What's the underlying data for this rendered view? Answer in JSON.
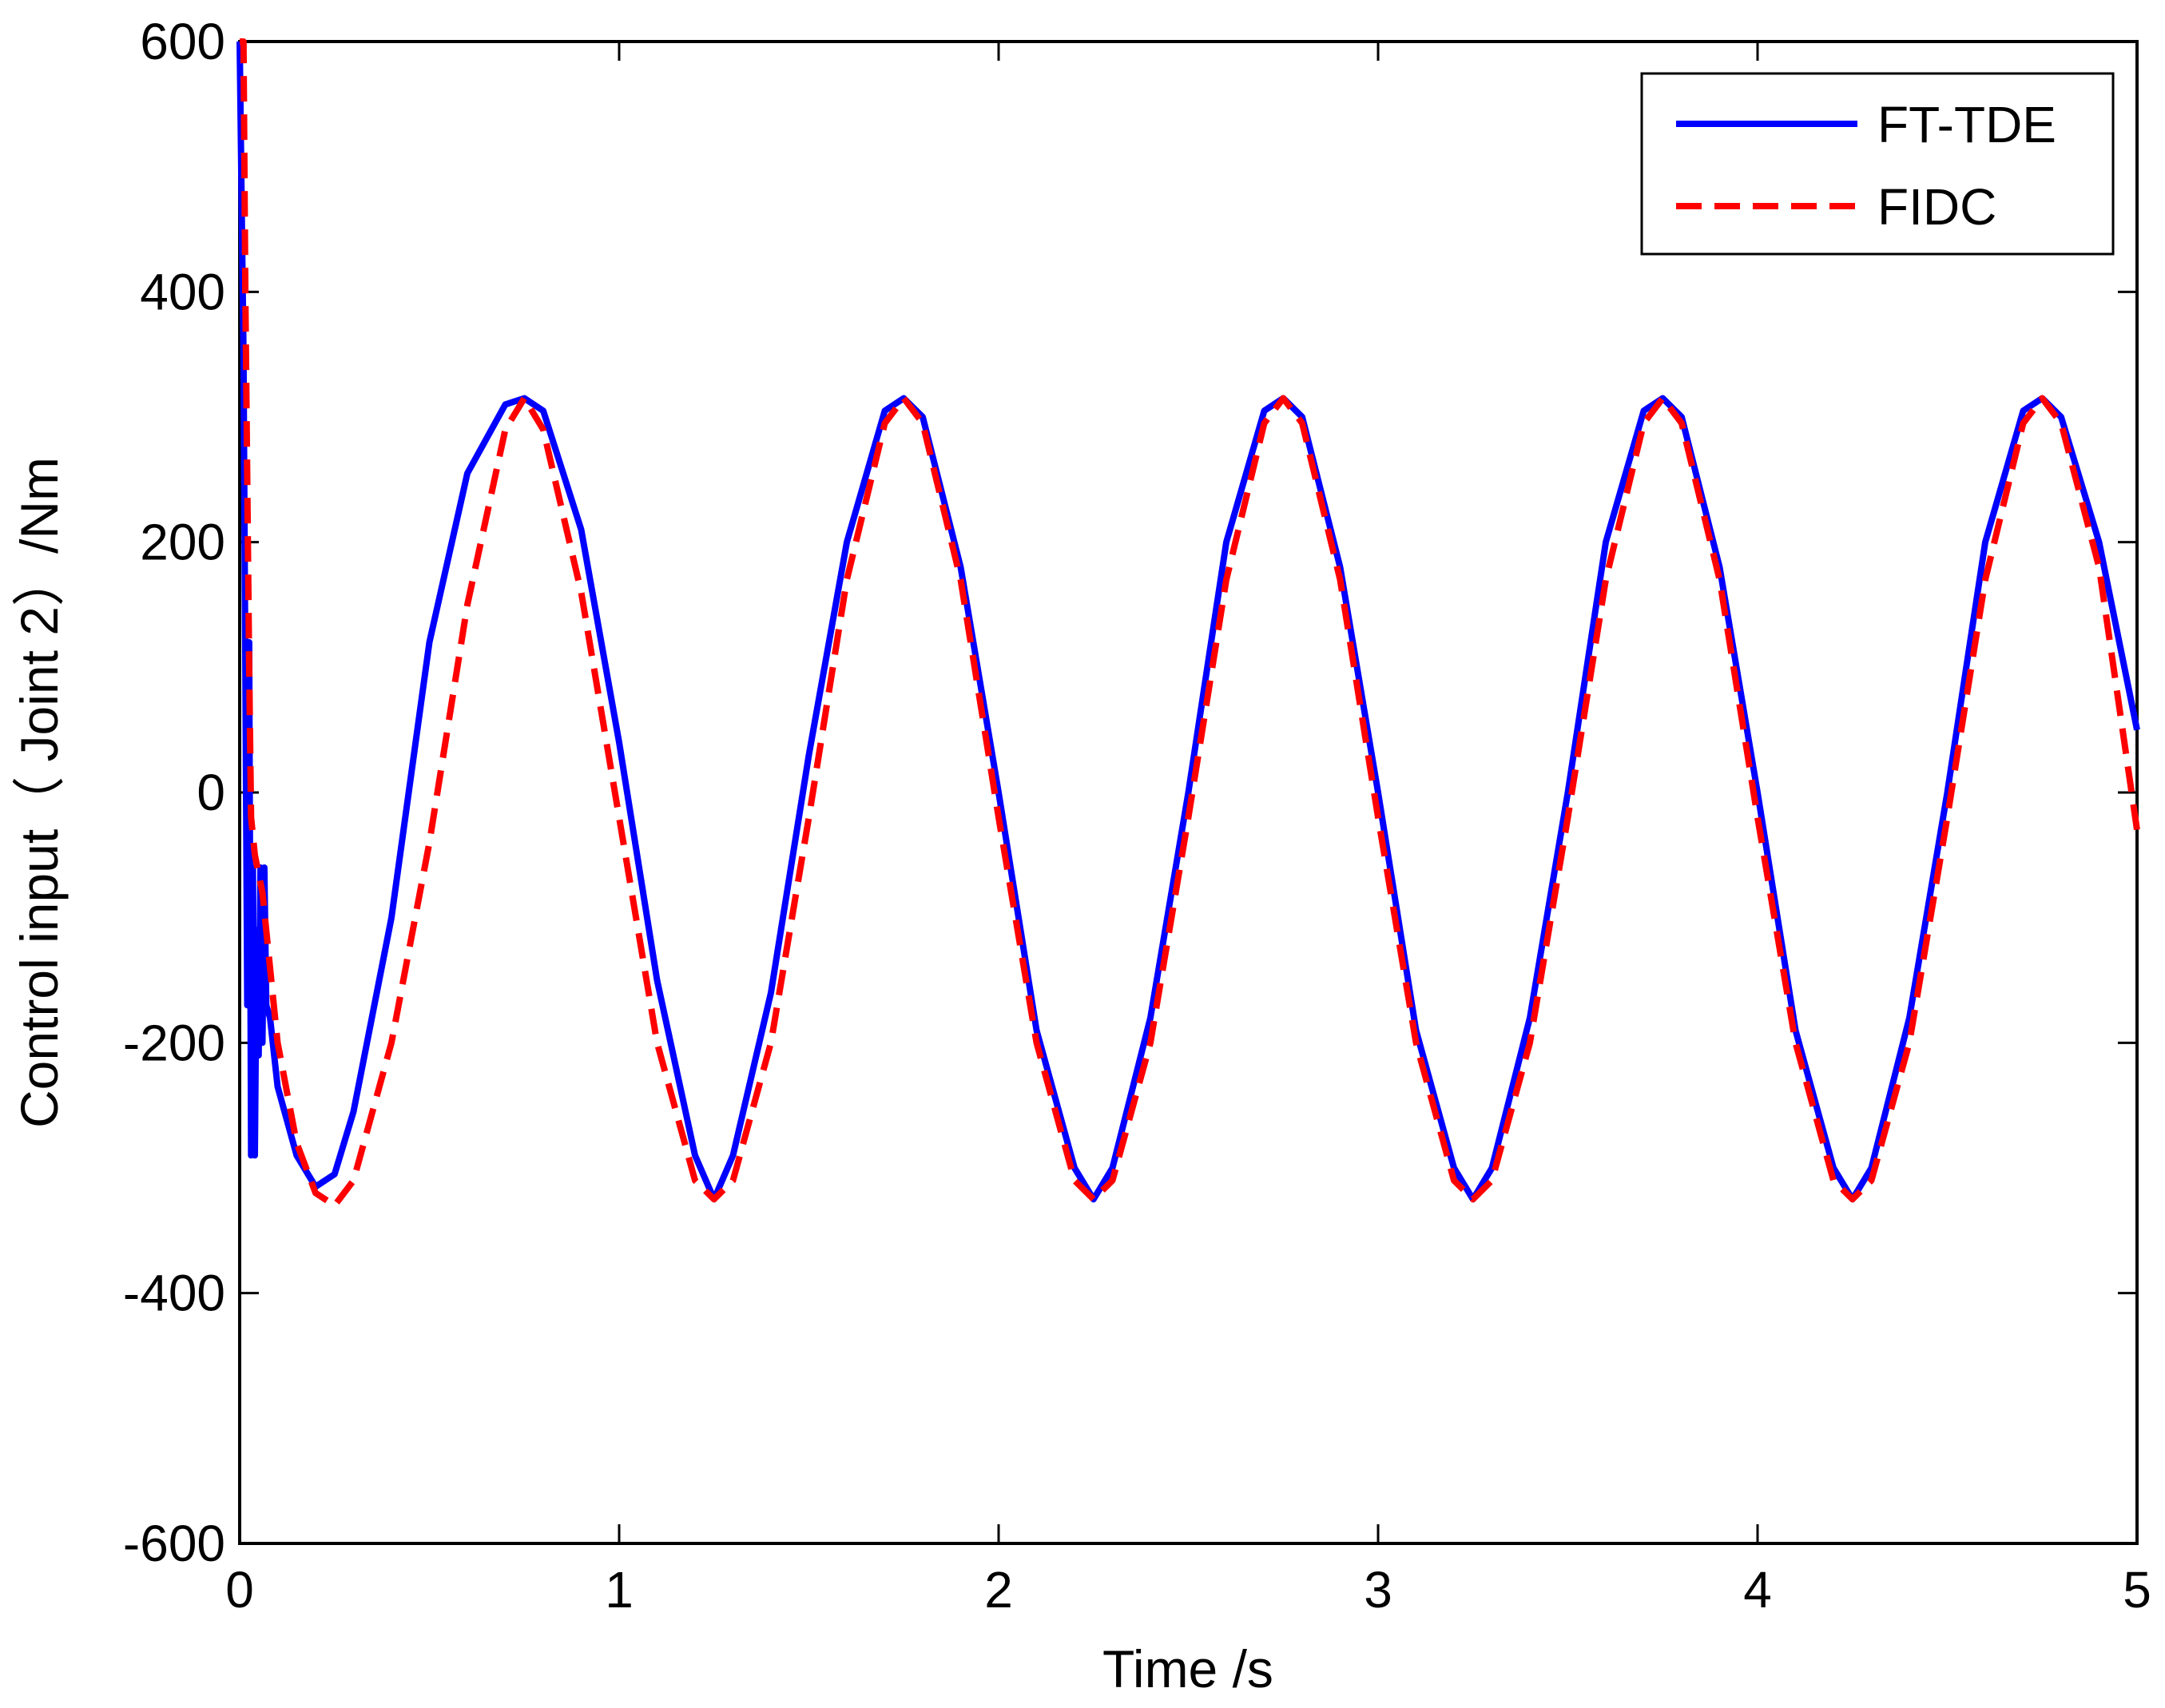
{
  "chart_data": {
    "type": "line",
    "xlabel": "Time /s",
    "ylabel": "Control input（ Joint 2）/Nm",
    "xlim": [
      0,
      5
    ],
    "ylim": [
      -600,
      600
    ],
    "xticks": [
      0,
      1,
      2,
      3,
      4,
      5
    ],
    "yticks": [
      -600,
      -400,
      -200,
      0,
      200,
      400,
      600
    ],
    "grid": false,
    "legend_position": "top-right",
    "series": [
      {
        "name": "FT-TDE",
        "color": "#0000FF",
        "dash": "solid",
        "x": [
          0,
          0.01,
          0.015,
          0.02,
          0.025,
          0.03,
          0.035,
          0.04,
          0.045,
          0.05,
          0.055,
          0.06,
          0.065,
          0.07,
          0.08,
          0.1,
          0.15,
          0.2,
          0.25,
          0.3,
          0.4,
          0.5,
          0.6,
          0.7,
          0.75,
          0.8,
          0.9,
          1.0,
          1.1,
          1.2,
          1.25,
          1.3,
          1.4,
          1.5,
          1.6,
          1.7,
          1.75,
          1.8,
          1.9,
          2.0,
          2.1,
          2.2,
          2.25,
          2.3,
          2.4,
          2.5,
          2.6,
          2.7,
          2.75,
          2.8,
          2.9,
          3.0,
          3.1,
          3.2,
          3.25,
          3.3,
          3.4,
          3.5,
          3.6,
          3.7,
          3.75,
          3.8,
          3.9,
          4.0,
          4.1,
          4.2,
          4.25,
          4.3,
          4.4,
          4.5,
          4.6,
          4.7,
          4.75,
          4.8,
          4.9,
          5.0
        ],
        "y": [
          600,
          350,
          100,
          -170,
          120,
          -290,
          -60,
          -290,
          -110,
          -210,
          -60,
          -200,
          -60,
          -170,
          -180,
          -235,
          -290,
          -315,
          -305,
          -255,
          -100,
          120,
          255,
          310,
          315,
          305,
          210,
          40,
          -150,
          -290,
          -325,
          -290,
          -160,
          30,
          200,
          305,
          315,
          300,
          180,
          0,
          -190,
          -300,
          -325,
          -300,
          -180,
          0,
          200,
          305,
          315,
          300,
          180,
          0,
          -190,
          -300,
          -325,
          -300,
          -180,
          0,
          200,
          305,
          315,
          300,
          180,
          0,
          -190,
          -300,
          -325,
          -300,
          -180,
          0,
          200,
          305,
          315,
          300,
          200,
          50
        ]
      },
      {
        "name": "FIDC",
        "color": "#FF0000",
        "dash": "dashed",
        "x": [
          0,
          0.01,
          0.015,
          0.02,
          0.025,
          0.03,
          0.04,
          0.06,
          0.08,
          0.1,
          0.15,
          0.2,
          0.25,
          0.3,
          0.4,
          0.5,
          0.6,
          0.7,
          0.75,
          0.8,
          0.9,
          1.0,
          1.1,
          1.2,
          1.25,
          1.3,
          1.4,
          1.5,
          1.6,
          1.7,
          1.75,
          1.8,
          1.9,
          2.0,
          2.1,
          2.2,
          2.25,
          2.3,
          2.4,
          2.5,
          2.6,
          2.7,
          2.75,
          2.8,
          2.9,
          3.0,
          3.1,
          3.2,
          3.25,
          3.3,
          3.4,
          3.5,
          3.6,
          3.7,
          3.75,
          3.8,
          3.9,
          4.0,
          4.1,
          4.2,
          4.25,
          4.3,
          4.4,
          4.5,
          4.6,
          4.7,
          4.75,
          4.8,
          4.9,
          5.0
        ],
        "y": [
          600,
          600,
          400,
          250,
          100,
          -20,
          -50,
          -80,
          -140,
          -200,
          -280,
          -320,
          -330,
          -310,
          -200,
          -40,
          150,
          290,
          315,
          290,
          160,
          -20,
          -200,
          -310,
          -325,
          -310,
          -200,
          -20,
          170,
          295,
          315,
          295,
          170,
          -20,
          -200,
          -310,
          -325,
          -310,
          -200,
          -20,
          170,
          295,
          315,
          295,
          170,
          -20,
          -200,
          -310,
          -325,
          -310,
          -200,
          -20,
          170,
          295,
          315,
          295,
          170,
          -20,
          -200,
          -310,
          -325,
          -310,
          -200,
          -20,
          170,
          295,
          315,
          295,
          180,
          -30
        ]
      }
    ]
  }
}
